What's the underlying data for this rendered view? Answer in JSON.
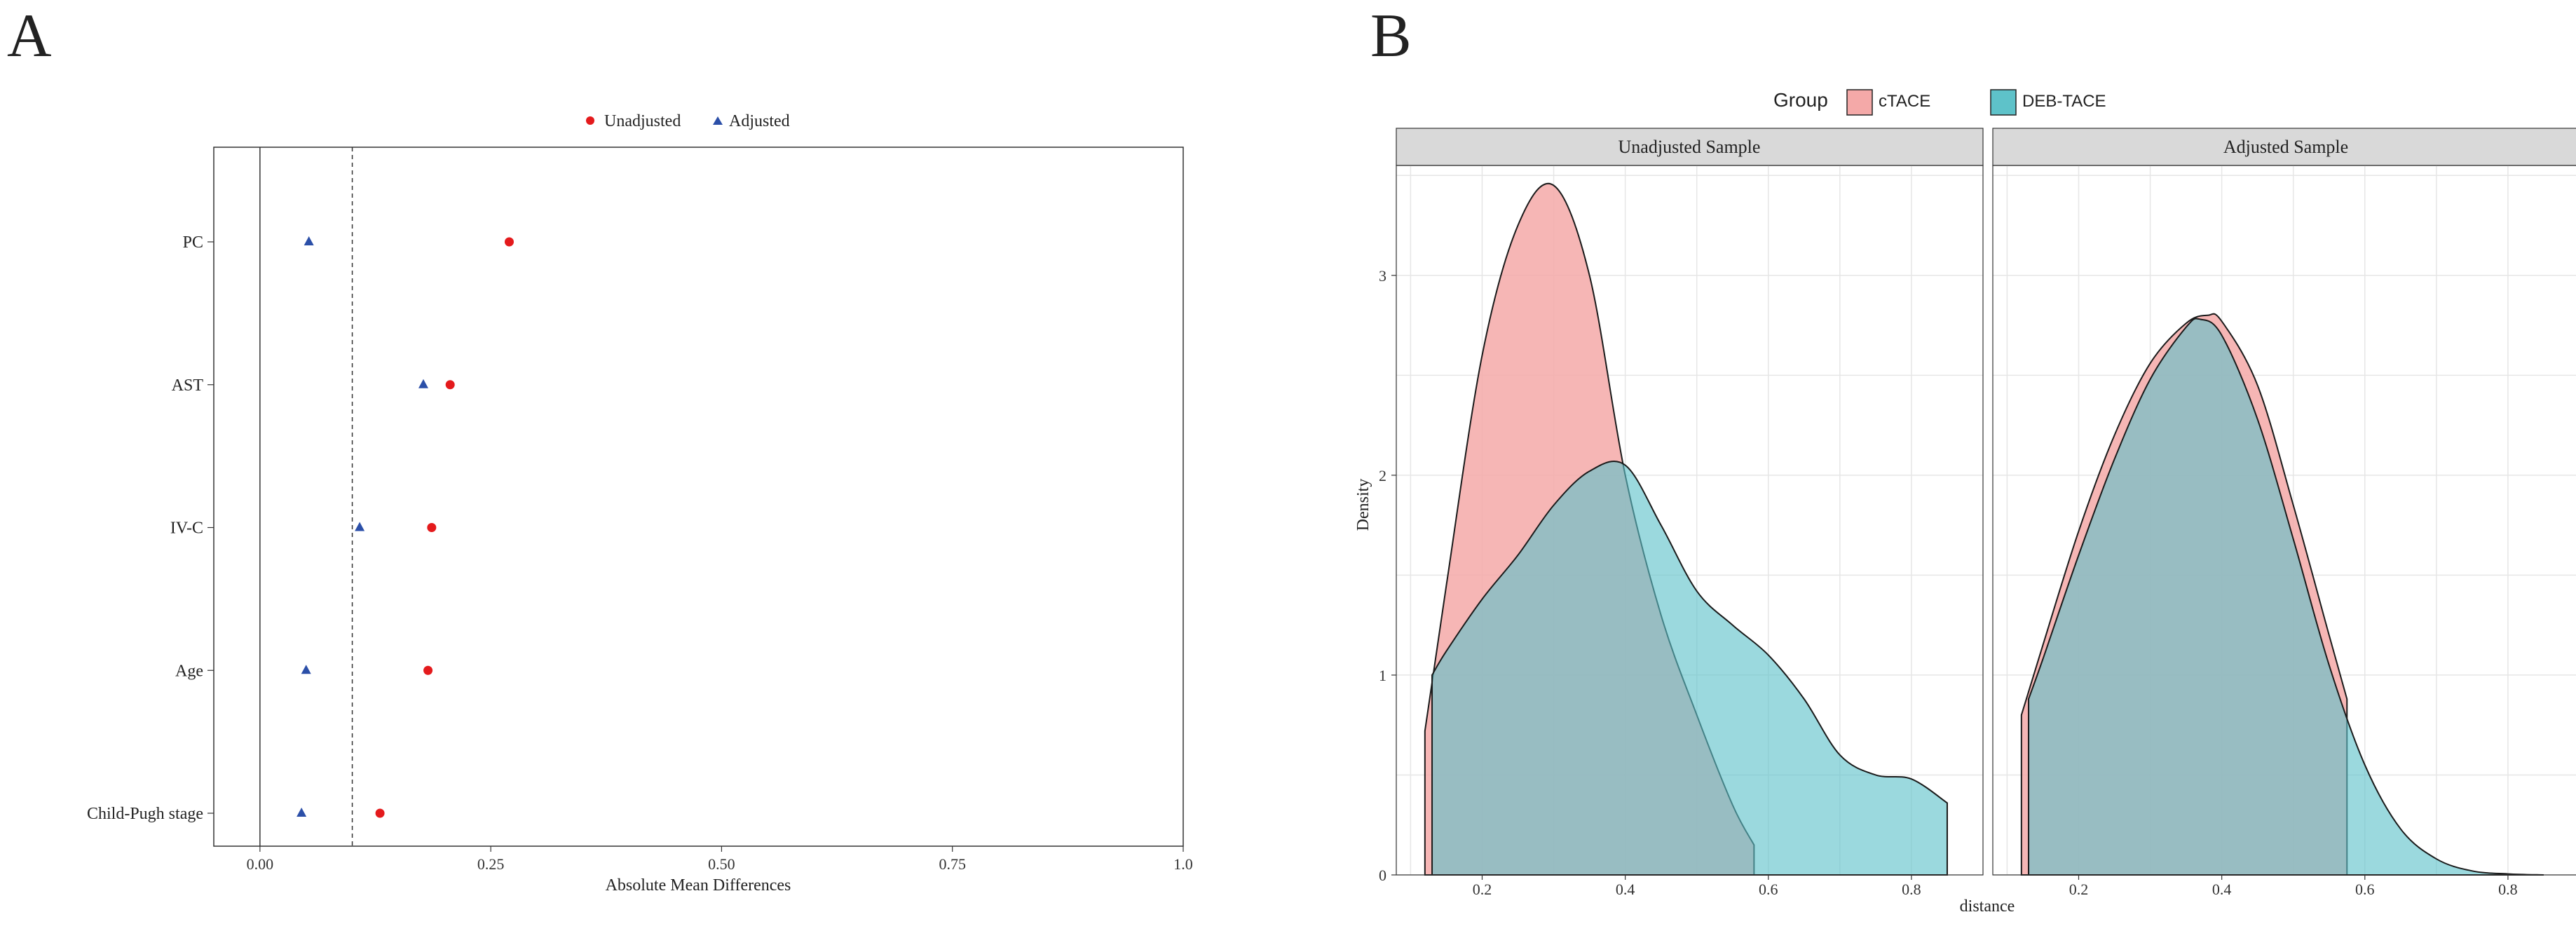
{
  "panel_a": {
    "letter": "A",
    "legend": {
      "unadjusted": "Unadjusted",
      "adjusted": "Adjusted"
    },
    "xlabel": "Absolute Mean Differences",
    "xticks": [
      "0.00",
      "0.25",
      "0.50",
      "0.75",
      "1.0"
    ],
    "colors": {
      "unadjusted": "#e41a1c",
      "adjusted": "#2b4fa8"
    }
  },
  "panel_b": {
    "letter": "B",
    "legend_title": "Group",
    "legend_items": [
      "cTACE",
      "DEB-TACE"
    ],
    "facets": [
      "Unadjusted Sample",
      "Adjusted Sample"
    ],
    "xlabel": "distance",
    "ylabel": "Density",
    "xticks": [
      "0.2",
      "0.4",
      "0.6",
      "0.8"
    ],
    "yticks": [
      "0",
      "1",
      "2",
      "3"
    ],
    "colors": {
      "ctace": "#f4a9a8",
      "deb": "#5ec2c9"
    }
  },
  "chart_data": [
    {
      "type": "scatter",
      "subtype": "love-plot",
      "categories": [
        "PC",
        "AST",
        "IV-C",
        "Age",
        "Child-Pugh stage"
      ],
      "series": [
        {
          "name": "Unadjusted",
          "values": [
            0.27,
            0.206,
            0.186,
            0.182,
            0.13
          ]
        },
        {
          "name": "Adjusted",
          "values": [
            0.053,
            0.177,
            0.108,
            0.05,
            0.045
          ]
        }
      ],
      "xlabel": "Absolute Mean Differences",
      "xlim": [
        -0.05,
        1.0
      ],
      "threshold_line": 0.1,
      "legend_position": "top"
    },
    {
      "type": "area",
      "subtype": "density",
      "facets": [
        "Unadjusted Sample",
        "Adjusted Sample"
      ],
      "xlabel": "distance",
      "ylabel": "Density",
      "xlim": [
        0.08,
        0.9
      ],
      "ylim": [
        0,
        3.55
      ],
      "legend_title": "Group",
      "legend_position": "top",
      "series": [
        {
          "facet": "Unadjusted Sample",
          "name": "cTACE",
          "x": [
            0.12,
            0.15,
            0.2,
            0.25,
            0.3,
            0.35,
            0.4,
            0.45,
            0.5,
            0.55,
            0.58
          ],
          "y": [
            0.72,
            1.45,
            2.6,
            3.25,
            3.45,
            3.0,
            2.0,
            1.3,
            0.8,
            0.35,
            0.15
          ]
        },
        {
          "facet": "Unadjusted Sample",
          "name": "DEB-TACE",
          "x": [
            0.13,
            0.15,
            0.2,
            0.25,
            0.3,
            0.35,
            0.4,
            0.45,
            0.5,
            0.55,
            0.6,
            0.65,
            0.7,
            0.75,
            0.8,
            0.85
          ],
          "y": [
            1.0,
            1.12,
            1.38,
            1.6,
            1.85,
            2.02,
            2.05,
            1.75,
            1.42,
            1.25,
            1.1,
            0.88,
            0.6,
            0.5,
            0.48,
            0.36
          ]
        },
        {
          "facet": "Adjusted Sample",
          "name": "cTACE",
          "x": [
            0.12,
            0.15,
            0.2,
            0.25,
            0.3,
            0.35,
            0.38,
            0.4,
            0.45,
            0.5,
            0.55,
            0.575
          ],
          "y": [
            0.8,
            1.15,
            1.72,
            2.2,
            2.56,
            2.76,
            2.8,
            2.77,
            2.45,
            1.85,
            1.2,
            0.88
          ]
        },
        {
          "facet": "Adjusted Sample",
          "name": "DEB-TACE",
          "x": [
            0.13,
            0.15,
            0.2,
            0.25,
            0.3,
            0.35,
            0.37,
            0.4,
            0.45,
            0.5,
            0.55,
            0.6,
            0.65,
            0.7,
            0.75,
            0.8,
            0.85
          ],
          "y": [
            0.88,
            1.08,
            1.6,
            2.08,
            2.48,
            2.74,
            2.78,
            2.7,
            2.28,
            1.68,
            1.05,
            0.55,
            0.23,
            0.08,
            0.02,
            0.005,
            0.0
          ]
        }
      ]
    }
  ]
}
